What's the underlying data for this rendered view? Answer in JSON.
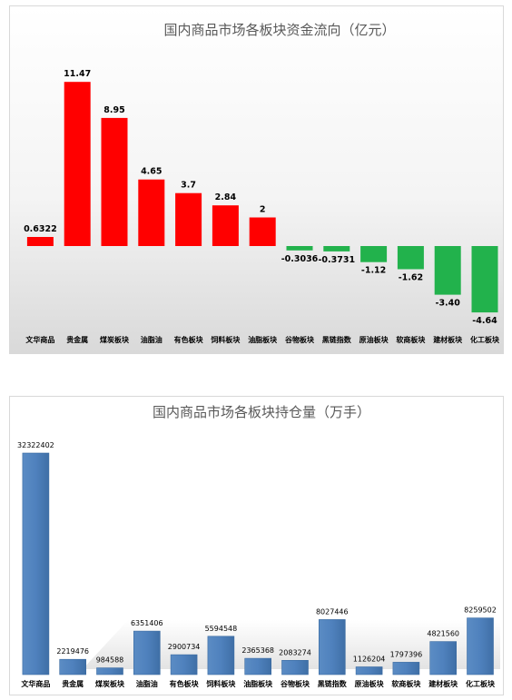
{
  "chart_data": [
    {
      "type": "bar",
      "title": "国内商品市场各板块资金流向（亿元）",
      "categories": [
        "文华商品",
        "贵金属",
        "煤炭板块",
        "油脂油",
        "有色板块",
        "饲料板块",
        "油脂板块",
        "谷物板块",
        "黑链指数",
        "原油板块",
        "软商板块",
        "建材板块",
        "化工板块"
      ],
      "values": [
        0.6322,
        11.47,
        8.95,
        4.65,
        3.7,
        2.84,
        2,
        -0.3036,
        -0.3731,
        -1.12,
        -1.62,
        -3.4,
        -4.64
      ],
      "value_labels": [
        "0.6322",
        "11.47",
        "8.95",
        "4.65",
        "3.7",
        "2.84",
        "2",
        "-0.3036",
        "-0.3731",
        "-1.12",
        "-1.62",
        "-3.40",
        "-4.64"
      ],
      "ylim": [
        -4.64,
        11.47
      ],
      "grid": false,
      "colors": {
        "positive": "#ff0000",
        "negative": "#22b24c"
      }
    },
    {
      "type": "bar",
      "title": "国内商品市场各板块持仓量（万手）",
      "categories": [
        "文华商品",
        "贵金属",
        "煤炭板块",
        "油脂油",
        "有色板块",
        "饲料板块",
        "油脂板块",
        "谷物板块",
        "黑链指数",
        "原油板块",
        "软商板块",
        "建材板块",
        "化工板块"
      ],
      "values": [
        32322402,
        2219476,
        984588,
        6351406,
        2900734,
        5594548,
        2365368,
        2083274,
        8027446,
        1126204,
        1797396,
        4821560,
        8259502
      ],
      "value_labels": [
        "32322402",
        "2219476",
        "984588",
        "6351406",
        "2900734",
        "5594548",
        "2365368",
        "2083274",
        "8027446",
        "1126204",
        "1797396",
        "4821560",
        "8259502"
      ],
      "ylim": [
        0,
        32322402
      ],
      "grid": false,
      "colors": {
        "bar": "#4f81bd",
        "bar_edge": "#3a6aa0"
      }
    }
  ]
}
